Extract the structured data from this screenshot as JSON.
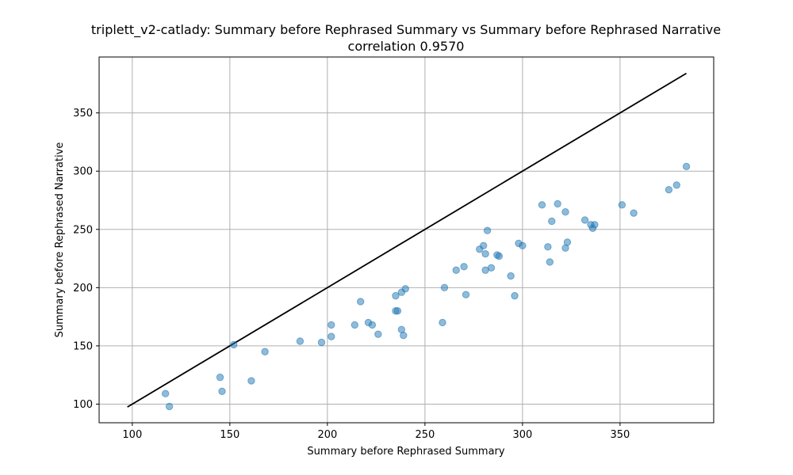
{
  "chart_data": {
    "type": "scatter",
    "title": "triplett_v2-catlady: Summary before Rephrased Summary vs Summary before Rephrased Narrative",
    "subtitle": "correlation 0.9570",
    "xlabel": "Summary before Rephrased Summary",
    "ylabel": "Summary before Rephrased Narrative",
    "xlim": [
      83,
      398
    ],
    "ylim": [
      84,
      398
    ],
    "xticks": [
      100,
      150,
      200,
      250,
      300,
      350
    ],
    "yticks": [
      100,
      150,
      200,
      250,
      300,
      350
    ],
    "xtick_labels": [
      "100",
      "150",
      "200",
      "250",
      "300",
      "350"
    ],
    "ytick_labels": [
      "100",
      "150",
      "200",
      "250",
      "300",
      "350"
    ],
    "grid": true,
    "point_color": "#1f77b4",
    "line_color": "#000000",
    "reference_line": {
      "x": [
        97.5,
        384
      ],
      "y": [
        97.5,
        384
      ]
    },
    "points": [
      {
        "x": 117,
        "y": 109
      },
      {
        "x": 119,
        "y": 98
      },
      {
        "x": 145,
        "y": 123
      },
      {
        "x": 146,
        "y": 111
      },
      {
        "x": 152,
        "y": 151
      },
      {
        "x": 161,
        "y": 120
      },
      {
        "x": 168,
        "y": 145
      },
      {
        "x": 186,
        "y": 154
      },
      {
        "x": 197,
        "y": 153
      },
      {
        "x": 202,
        "y": 158
      },
      {
        "x": 202,
        "y": 168
      },
      {
        "x": 214,
        "y": 168
      },
      {
        "x": 217,
        "y": 188
      },
      {
        "x": 221,
        "y": 170
      },
      {
        "x": 223,
        "y": 168
      },
      {
        "x": 226,
        "y": 160
      },
      {
        "x": 235,
        "y": 193
      },
      {
        "x": 235,
        "y": 180
      },
      {
        "x": 236,
        "y": 180
      },
      {
        "x": 238,
        "y": 196
      },
      {
        "x": 238,
        "y": 164
      },
      {
        "x": 239,
        "y": 159
      },
      {
        "x": 240,
        "y": 199
      },
      {
        "x": 259,
        "y": 170
      },
      {
        "x": 260,
        "y": 200
      },
      {
        "x": 266,
        "y": 215
      },
      {
        "x": 270,
        "y": 218
      },
      {
        "x": 271,
        "y": 194
      },
      {
        "x": 278,
        "y": 233
      },
      {
        "x": 280,
        "y": 236
      },
      {
        "x": 281,
        "y": 215
      },
      {
        "x": 281,
        "y": 229
      },
      {
        "x": 282,
        "y": 249
      },
      {
        "x": 284,
        "y": 217
      },
      {
        "x": 287,
        "y": 228
      },
      {
        "x": 288,
        "y": 227
      },
      {
        "x": 294,
        "y": 210
      },
      {
        "x": 296,
        "y": 193
      },
      {
        "x": 298,
        "y": 238
      },
      {
        "x": 300,
        "y": 236
      },
      {
        "x": 310,
        "y": 271
      },
      {
        "x": 313,
        "y": 235
      },
      {
        "x": 314,
        "y": 222
      },
      {
        "x": 315,
        "y": 257
      },
      {
        "x": 318,
        "y": 272
      },
      {
        "x": 322,
        "y": 265
      },
      {
        "x": 322,
        "y": 234
      },
      {
        "x": 323,
        "y": 239
      },
      {
        "x": 332,
        "y": 258
      },
      {
        "x": 335,
        "y": 254
      },
      {
        "x": 336,
        "y": 251
      },
      {
        "x": 337,
        "y": 254
      },
      {
        "x": 351,
        "y": 271
      },
      {
        "x": 357,
        "y": 264
      },
      {
        "x": 375,
        "y": 284
      },
      {
        "x": 379,
        "y": 288
      },
      {
        "x": 384,
        "y": 304
      }
    ]
  }
}
